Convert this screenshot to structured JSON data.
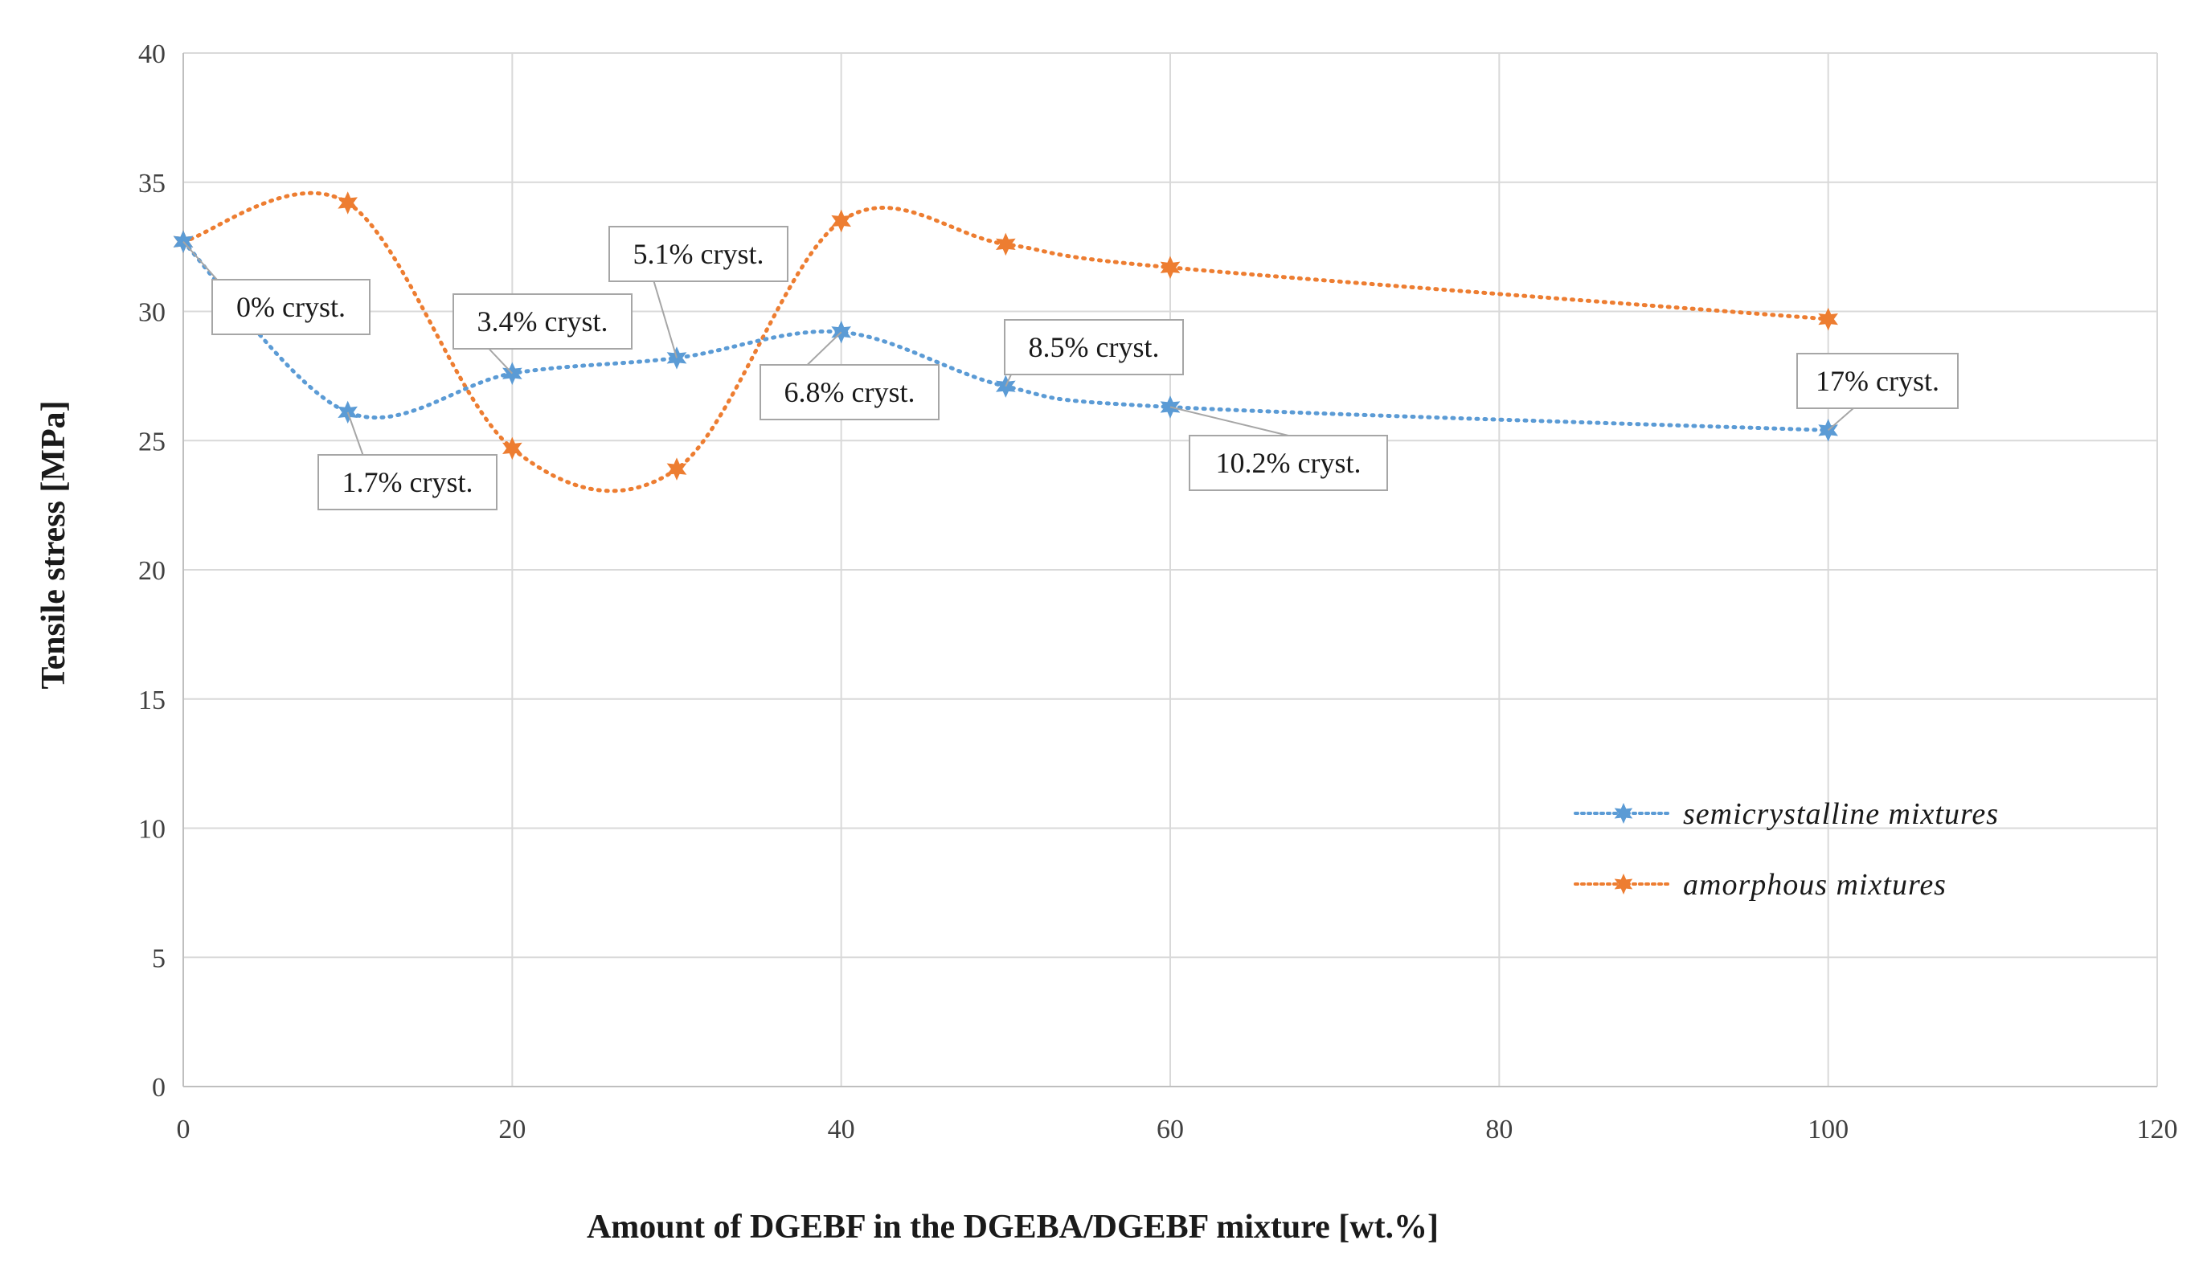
{
  "chart_data": {
    "type": "line",
    "title": "",
    "xlabel": "Amount of DGEBF in the DGEBA/DGEBF mixture [wt.%]",
    "ylabel": "Tensile stress  [MPa]",
    "xlim": [
      0,
      120
    ],
    "ylim": [
      0,
      40
    ],
    "x_ticks": [
      "0",
      "20",
      "40",
      "60",
      "80",
      "100",
      "120"
    ],
    "y_ticks": [
      "0",
      "5",
      "10",
      "15",
      "20",
      "25",
      "30",
      "35",
      "40"
    ],
    "grid": true,
    "legend_position": "right",
    "series": [
      {
        "name": "semicrystalline mixtures",
        "color": "#5b9bd5",
        "x": [
          0,
          10,
          20,
          30,
          40,
          50,
          60,
          100
        ],
        "y": [
          32.7,
          26.1,
          27.6,
          28.2,
          29.2,
          27.1,
          26.3,
          25.4
        ],
        "point_labels": [
          "0% cryst.",
          "1.7% cryst.",
          "3.4% cryst.",
          "5.1% cryst.",
          "6.8% cryst.",
          "8.5% cryst.",
          "10.2% cryst.",
          "17% cryst."
        ]
      },
      {
        "name": "amorphous mixtures",
        "color": "#ed7d31",
        "x": [
          0,
          10,
          20,
          30,
          40,
          50,
          60,
          100
        ],
        "y": [
          32.7,
          34.2,
          24.7,
          23.9,
          33.5,
          32.6,
          31.7,
          29.7
        ]
      }
    ]
  }
}
